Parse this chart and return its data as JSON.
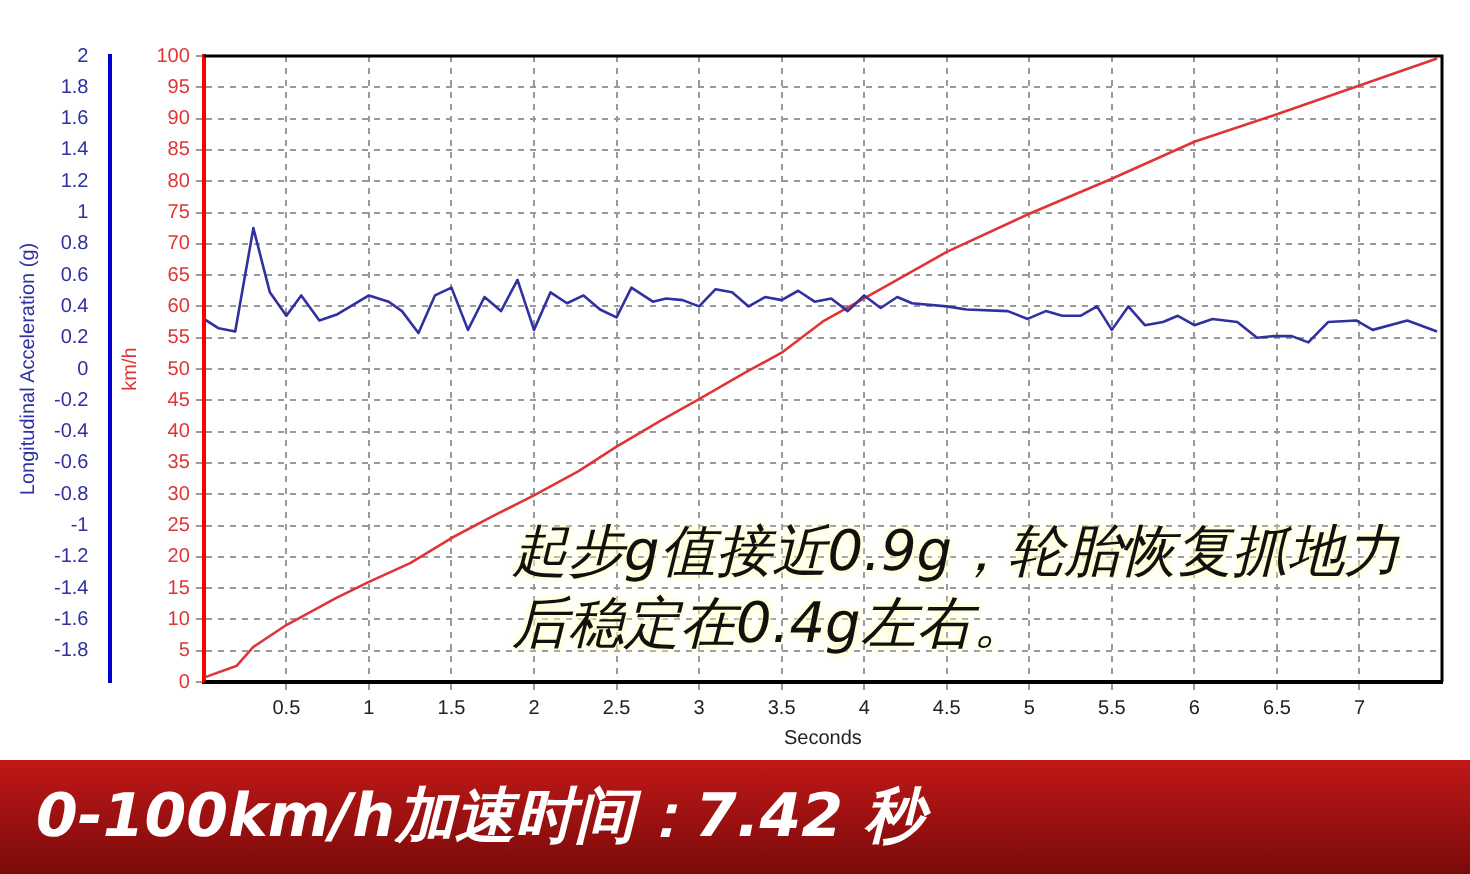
{
  "chart_data": {
    "type": "line",
    "xlabel": "Seconds",
    "ylabel": "Longitudinal Acceleration (g)",
    "y2label": "km/h",
    "xlim": [
      0,
      7.5
    ],
    "xticks": [
      0.5,
      1,
      1.5,
      2,
      2.5,
      3,
      3.5,
      4,
      4.5,
      5,
      5.5,
      6,
      6.5,
      7
    ],
    "ylim": [
      -2,
      2
    ],
    "yticks": [
      -1.8,
      -1.6,
      -1.4,
      -1.2,
      -1,
      -0.8,
      -0.6,
      -0.4,
      -0.2,
      0,
      0.2,
      0.4,
      0.6,
      0.8,
      1,
      1.2,
      1.4,
      1.6,
      1.8,
      2
    ],
    "y2lim": [
      0,
      100
    ],
    "y2ticks": [
      0,
      5,
      10,
      15,
      20,
      25,
      30,
      35,
      40,
      45,
      50,
      55,
      60,
      65,
      70,
      75,
      80,
      85,
      90,
      95,
      100
    ],
    "grid": true,
    "legend": false,
    "marker": "none",
    "line_style": "solid",
    "series": [
      {
        "color": "#3030a0",
        "x": [
          0,
          0.09,
          0.19,
          0.3,
          0.4,
          0.5,
          0.59,
          0.7,
          0.81,
          1,
          1.12,
          1.2,
          1.3,
          1.4,
          1.5,
          1.6,
          1.7,
          1.8,
          1.9,
          2,
          2.1,
          2.2,
          2.3,
          2.4,
          2.5,
          2.59,
          2.72,
          2.8,
          2.9,
          3,
          3.1,
          3.2,
          3.3,
          3.4,
          3.5,
          3.6,
          3.7,
          3.8,
          3.9,
          4,
          4.1,
          4.2,
          4.29,
          4.5,
          4.62,
          4.87,
          4.99,
          5.1,
          5.2,
          5.31,
          5.41,
          5.5,
          5.6,
          5.7,
          5.81,
          5.9,
          6,
          6.11,
          6.26,
          6.38,
          6.48,
          6.59,
          6.69,
          6.81,
          6.98,
          7.08,
          7.29,
          7.47
        ],
        "values": [
          0.32,
          0.26,
          0.24,
          0.9,
          0.49,
          0.34,
          0.47,
          0.31,
          0.35,
          0.47,
          0.43,
          0.37,
          0.23,
          0.47,
          0.52,
          0.25,
          0.46,
          0.37,
          0.57,
          0.25,
          0.49,
          0.42,
          0.47,
          0.38,
          0.33,
          0.52,
          0.43,
          0.45,
          0.44,
          0.4,
          0.51,
          0.49,
          0.4,
          0.46,
          0.44,
          0.5,
          0.43,
          0.45,
          0.37,
          0.47,
          0.39,
          0.46,
          0.42,
          0.4,
          0.38,
          0.37,
          0.32,
          0.37,
          0.34,
          0.34,
          0.4,
          0.25,
          0.4,
          0.28,
          0.3,
          0.34,
          0.28,
          0.32,
          0.3,
          0.2,
          0.21,
          0.21,
          0.17,
          0.3,
          0.31,
          0.25,
          0.31,
          0.24
        ]
      },
      {
        "color": "#e03535",
        "axis": "y2",
        "x": [
          0,
          0.2,
          0.3,
          0.5,
          0.8,
          1,
          1.25,
          1.5,
          1.75,
          2,
          2.27,
          2.5,
          2.77,
          3,
          3.27,
          3.5,
          3.75,
          4,
          4.5,
          5,
          5.5,
          6,
          6.5,
          7,
          7.47
        ],
        "values": [
          0.7,
          2.6,
          5.6,
          9.1,
          13.4,
          16,
          19,
          23,
          26.5,
          29.8,
          33.7,
          37.6,
          41.8,
          45.2,
          49.3,
          52.6,
          57.6,
          61.3,
          68.7,
          74.8,
          80.4,
          86.3,
          90.7,
          95.3,
          99.6
        ]
      }
    ],
    "annotations": [
      "起步g值接近0.9g，轮胎恢复抓地力后稳定在0.4g左右。",
      "0-100km/h加速时间：7.42 秒"
    ]
  }
}
